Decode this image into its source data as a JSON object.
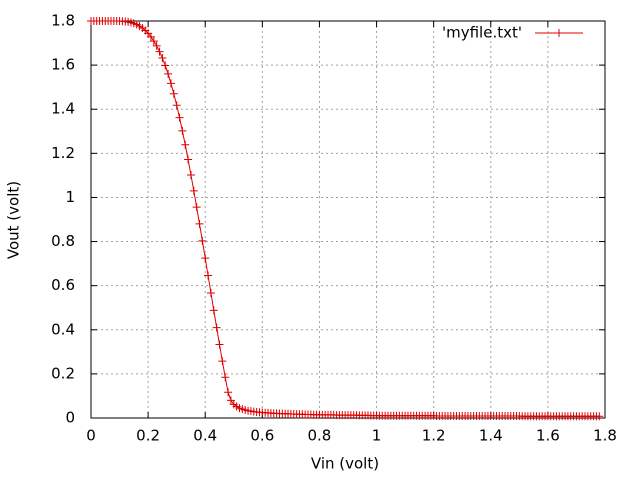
{
  "chart_data": {
    "type": "line",
    "xlabel": "Vin (volt)",
    "ylabel": "Vout (volt)",
    "xlim": [
      0,
      1.8
    ],
    "ylim": [
      0,
      1.8
    ],
    "xticks": [
      0,
      0.2,
      0.4,
      0.6,
      0.8,
      1,
      1.2,
      1.4,
      1.6,
      1.8
    ],
    "yticks": [
      0,
      0.2,
      0.4,
      0.6,
      0.8,
      1,
      1.2,
      1.4,
      1.6,
      1.8
    ],
    "grid": true,
    "legend": "top-right",
    "x": [
      0,
      0.01,
      0.02,
      0.03,
      0.04,
      0.05,
      0.06,
      0.07,
      0.08,
      0.09,
      0.1,
      0.11,
      0.12,
      0.13,
      0.14,
      0.15,
      0.16,
      0.17,
      0.18,
      0.19,
      0.2,
      0.21,
      0.22,
      0.23,
      0.24,
      0.25,
      0.26,
      0.27,
      0.28,
      0.29,
      0.3,
      0.31,
      0.32,
      0.33,
      0.34,
      0.35,
      0.36,
      0.37,
      0.38,
      0.39,
      0.4,
      0.41,
      0.42,
      0.43,
      0.44,
      0.45,
      0.46,
      0.47,
      0.48,
      0.49,
      0.5,
      0.51,
      0.52,
      0.53,
      0.54,
      0.55,
      0.56,
      0.57,
      0.58,
      0.59,
      0.6,
      0.61,
      0.62,
      0.63,
      0.64,
      0.65,
      0.66,
      0.67,
      0.68,
      0.69,
      0.7,
      0.71,
      0.72,
      0.73,
      0.74,
      0.75,
      0.76,
      0.77,
      0.78,
      0.79,
      0.8,
      0.81,
      0.82,
      0.83,
      0.84,
      0.85,
      0.86,
      0.87,
      0.88,
      0.89,
      0.9,
      0.91,
      0.92,
      0.93,
      0.94,
      0.95,
      0.96,
      0.97,
      0.98,
      0.99,
      1,
      1.01,
      1.02,
      1.03,
      1.04,
      1.05,
      1.06,
      1.07,
      1.08,
      1.09,
      1.1,
      1.11,
      1.12,
      1.13,
      1.14,
      1.15,
      1.16,
      1.17,
      1.18,
      1.19,
      1.2,
      1.21,
      1.22,
      1.23,
      1.24,
      1.25,
      1.26,
      1.27,
      1.28,
      1.29,
      1.3,
      1.31,
      1.32,
      1.33,
      1.34,
      1.35,
      1.36,
      1.37,
      1.38,
      1.39,
      1.4,
      1.41,
      1.42,
      1.43,
      1.44,
      1.45,
      1.46,
      1.47,
      1.48,
      1.49,
      1.5,
      1.51,
      1.52,
      1.53,
      1.54,
      1.55,
      1.56,
      1.57,
      1.58,
      1.59,
      1.6,
      1.61,
      1.62,
      1.63,
      1.64,
      1.65,
      1.66,
      1.67,
      1.68,
      1.69,
      1.7,
      1.71,
      1.72,
      1.73,
      1.74,
      1.75,
      1.76,
      1.77,
      1.78
    ],
    "series": [
      {
        "name": "'myfile.txt'",
        "color": "#dd0000",
        "values": [
          1.8,
          1.8,
          1.8,
          1.8,
          1.8,
          1.8,
          1.8,
          1.8,
          1.8,
          1.8,
          1.8,
          1.799,
          1.798,
          1.796,
          1.793,
          1.789,
          1.784,
          1.777,
          1.768,
          1.757,
          1.744,
          1.728,
          1.709,
          1.687,
          1.661,
          1.632,
          1.598,
          1.56,
          1.517,
          1.47,
          1.418,
          1.362,
          1.302,
          1.239,
          1.172,
          1.102,
          1.03,
          0.956,
          0.88,
          0.803,
          0.725,
          0.646,
          0.567,
          0.488,
          0.41,
          0.333,
          0.258,
          0.185,
          0.117,
          0.08,
          0.062,
          0.052,
          0.045,
          0.04,
          0.036,
          0.033,
          0.031,
          0.029,
          0.027,
          0.026,
          0.025,
          0.024,
          0.023,
          0.022,
          0.021,
          0.021,
          0.02,
          0.02,
          0.019,
          0.019,
          0.018,
          0.018,
          0.017,
          0.017,
          0.017,
          0.016,
          0.016,
          0.016,
          0.015,
          0.015,
          0.015,
          0.014,
          0.014,
          0.014,
          0.014,
          0.014,
          0.013,
          0.013,
          0.013,
          0.013,
          0.013,
          0.013,
          0.013,
          0.013,
          0.012,
          0.012,
          0.012,
          0.012,
          0.011,
          0.011,
          0.011,
          0.01,
          0.01,
          0.01,
          0.01,
          0.01,
          0.01,
          0.01,
          0.01,
          0.01,
          0.01,
          0.01,
          0.01,
          0.01,
          0.01,
          0.01,
          0.01,
          0.01,
          0.01,
          0.01,
          0.01,
          0.009,
          0.009,
          0.009,
          0.009,
          0.009,
          0.009,
          0.009,
          0.009,
          0.009,
          0.009,
          0.009,
          0.009,
          0.009,
          0.009,
          0.009,
          0.009,
          0.009,
          0.009,
          0.009,
          0.009,
          0.009,
          0.009,
          0.009,
          0.009,
          0.009,
          0.009,
          0.009,
          0.009,
          0.009,
          0.009,
          0.008,
          0.008,
          0.008,
          0.008,
          0.008,
          0.008,
          0.008,
          0.008,
          0.008,
          0.008,
          0.008,
          0.008,
          0.008,
          0.008,
          0.008,
          0.008,
          0.008,
          0.008,
          0.008,
          0.008,
          0.008,
          0.008,
          0.008,
          0.008,
          0.008,
          0.008,
          0.008,
          0.008
        ]
      }
    ]
  }
}
